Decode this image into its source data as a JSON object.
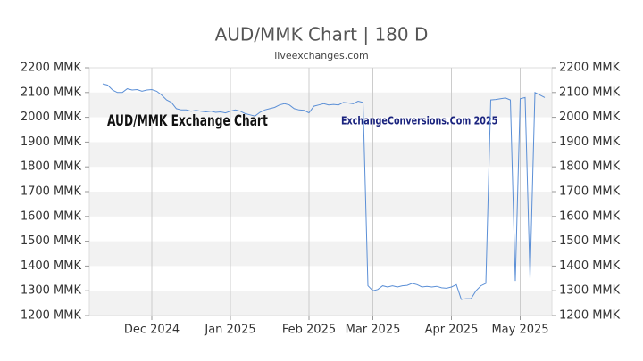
{
  "chart_data": {
    "type": "line",
    "title": "AUD/MMK Chart | 180 D",
    "subtitle": "liveexchanges.com",
    "annotations": [
      "AUD/MMK Exchange Chart",
      "ExchangeConversions.Com 2025"
    ],
    "categories": [
      null,
      null,
      null,
      null,
      null,
      null,
      null,
      null,
      null,
      null,
      "Dec 2024",
      null,
      null,
      null,
      null,
      null,
      null,
      null,
      null,
      null,
      null,
      null,
      null,
      null,
      null,
      null,
      "Jan 2025",
      null,
      null,
      null,
      null,
      null,
      null,
      null,
      null,
      null,
      null,
      null,
      null,
      null,
      null,
      null,
      "Feb 2025",
      null,
      null,
      null,
      null,
      null,
      null,
      null,
      null,
      null,
      null,
      null,
      null,
      "Mar 2025",
      null,
      null,
      null,
      null,
      null,
      null,
      null,
      null,
      null,
      null,
      null,
      null,
      null,
      null,
      null,
      "Apr 2025",
      null,
      null,
      null,
      null,
      null,
      null,
      null,
      null,
      null,
      null,
      null,
      null,
      null,
      "May 2025",
      null,
      null,
      null,
      null,
      null
    ],
    "series": [
      {
        "name": "AUD/MMK",
        "color": "#5b8fd6",
        "values": [
          2135,
          2130,
          2110,
          2100,
          2100,
          2115,
          2110,
          2112,
          2105,
          2110,
          2112,
          2105,
          2090,
          2070,
          2060,
          2035,
          2030,
          2030,
          2025,
          2028,
          2025,
          2022,
          2025,
          2020,
          2022,
          2018,
          2025,
          2030,
          2025,
          2015,
          2010,
          2005,
          2020,
          2030,
          2035,
          2040,
          2050,
          2055,
          2050,
          2035,
          2030,
          2028,
          2018,
          2045,
          2050,
          2055,
          2050,
          2052,
          2050,
          2060,
          2058,
          2055,
          2065,
          2060,
          1320,
          1300,
          1305,
          1320,
          1315,
          1320,
          1315,
          1320,
          1322,
          1330,
          1325,
          1315,
          1318,
          1315,
          1318,
          1312,
          1310,
          1315,
          1325,
          1265,
          1268,
          1268,
          1300,
          1320,
          1330,
          2070,
          2072,
          2075,
          2078,
          2070,
          1340,
          2075,
          2080,
          1350,
          2100,
          2090,
          2080
        ]
      }
    ],
    "ylim": [
      1200,
      2200
    ],
    "yticks": [
      {
        "value": 1200,
        "label": "1200 MMK"
      },
      {
        "value": 1300,
        "label": "1300 MMK"
      },
      {
        "value": 1400,
        "label": "1400 MMK"
      },
      {
        "value": 1500,
        "label": "1500 MMK"
      },
      {
        "value": 1600,
        "label": "1600 MMK"
      },
      {
        "value": 1700,
        "label": "1700 MMK"
      },
      {
        "value": 1800,
        "label": "1800 MMK"
      },
      {
        "value": 1900,
        "label": "1900 MMK"
      },
      {
        "value": 2000,
        "label": "2000 MMK"
      },
      {
        "value": 2100,
        "label": "2100 MMK"
      },
      {
        "value": 2200,
        "label": "2200 MMK"
      }
    ],
    "y2lim": [
      1200,
      2200
    ],
    "y2ticks": [
      {
        "value": 1200,
        "label": "1200 MMK"
      },
      {
        "value": 1300,
        "label": "1300 MMK"
      },
      {
        "value": 1400,
        "label": "1400 MMK"
      },
      {
        "value": 1500,
        "label": "1500 MMK"
      },
      {
        "value": 1600,
        "label": "1600 MMK"
      },
      {
        "value": 1700,
        "label": "1700 MMK"
      },
      {
        "value": 1800,
        "label": "1800 MMK"
      },
      {
        "value": 1900,
        "label": "1900 MMK"
      },
      {
        "value": 2000,
        "label": "2000 MMK"
      },
      {
        "value": 2100,
        "label": "2100 MMK"
      },
      {
        "value": 2200,
        "label": "2200 MMK"
      }
    ],
    "grid": true
  }
}
